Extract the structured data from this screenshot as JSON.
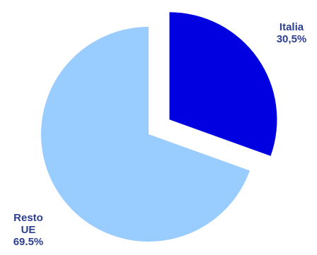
{
  "chart_data": {
    "type": "pie",
    "title": "",
    "slices": [
      {
        "label_lines": [
          "Italia",
          "30,5%"
        ],
        "value": 30.5,
        "color": "#0000e0",
        "exploded": true
      },
      {
        "label_lines": [
          "Resto",
          "UE",
          "69.5%"
        ],
        "value": 69.5,
        "color": "#99ccff",
        "exploded": false
      }
    ]
  }
}
